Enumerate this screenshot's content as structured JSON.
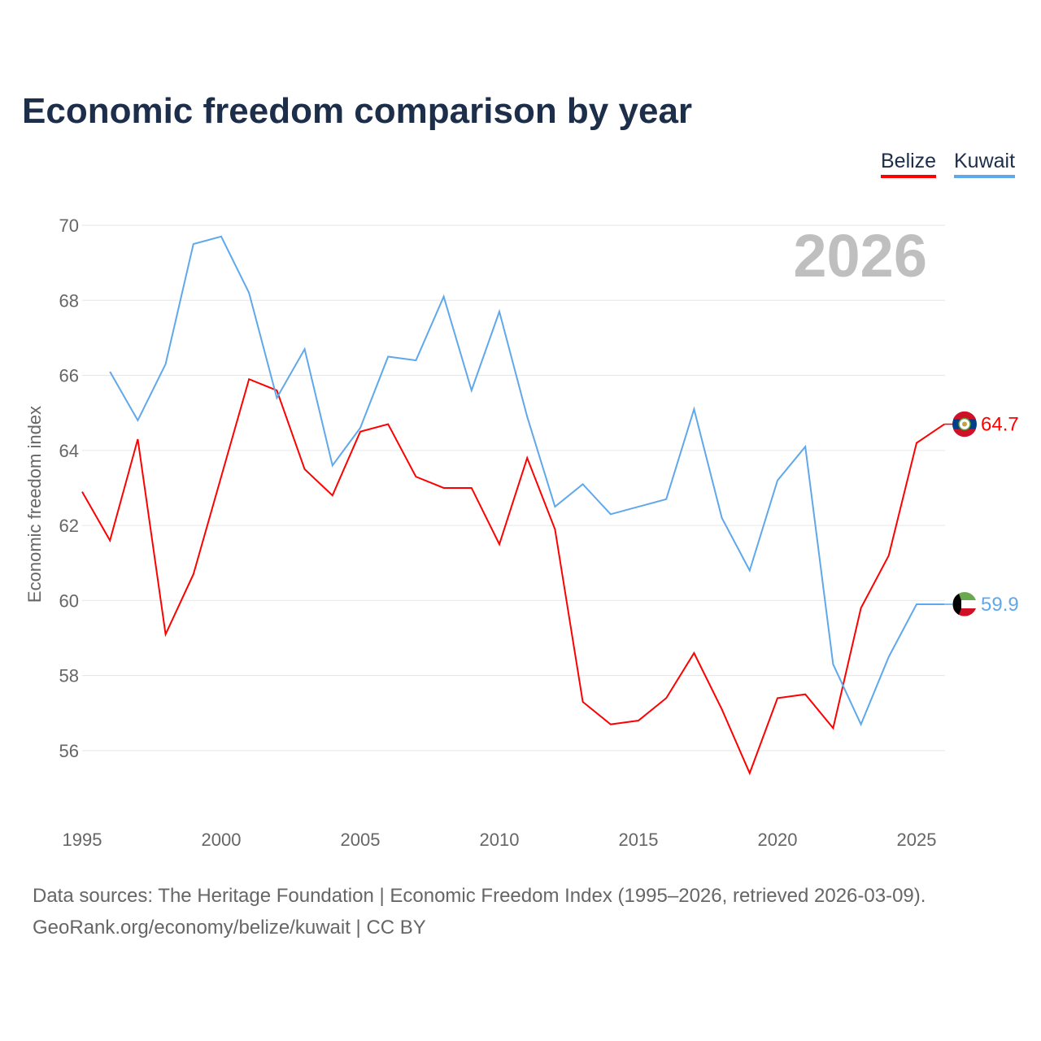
{
  "chart_data": {
    "type": "line",
    "title": "Economic freedom comparison by year",
    "ylabel": "Economic freedom index",
    "xlabel": "",
    "xlim": [
      1995,
      2026
    ],
    "ylim": [
      54.4,
      70
    ],
    "yticks": [
      56,
      58,
      60,
      62,
      64,
      66,
      68,
      70
    ],
    "xticks": [
      1995,
      2000,
      2005,
      2010,
      2015,
      2020,
      2025
    ],
    "year_label": "2026",
    "grid": true,
    "legend": "top-right",
    "series": [
      {
        "name": "Belize",
        "color": "#ff0000",
        "end_label": "64.7",
        "x": [
          1995,
          1996,
          1997,
          1998,
          1999,
          2000,
          2001,
          2002,
          2003,
          2004,
          2005,
          2006,
          2007,
          2008,
          2009,
          2010,
          2011,
          2012,
          2013,
          2014,
          2015,
          2016,
          2017,
          2018,
          2019,
          2020,
          2021,
          2022,
          2023,
          2024,
          2025,
          2026
        ],
        "values": [
          62.9,
          61.6,
          64.3,
          59.1,
          60.7,
          63.3,
          65.9,
          65.6,
          63.5,
          62.8,
          64.5,
          64.7,
          63.3,
          63.0,
          63.0,
          61.5,
          63.8,
          61.9,
          57.3,
          56.7,
          56.8,
          57.4,
          58.6,
          57.1,
          55.4,
          57.4,
          57.5,
          56.6,
          59.8,
          61.2,
          64.2,
          64.7
        ]
      },
      {
        "name": "Kuwait",
        "color": "#5fa8ec",
        "end_label": "59.9",
        "x": [
          1996,
          1997,
          1998,
          1999,
          2000,
          2001,
          2002,
          2003,
          2004,
          2005,
          2006,
          2007,
          2008,
          2009,
          2010,
          2011,
          2012,
          2013,
          2014,
          2015,
          2016,
          2017,
          2018,
          2019,
          2020,
          2021,
          2022,
          2023,
          2024,
          2025,
          2026
        ],
        "values": [
          66.1,
          64.8,
          66.3,
          69.5,
          69.7,
          68.2,
          65.4,
          66.7,
          63.6,
          64.6,
          66.5,
          66.4,
          68.1,
          65.6,
          67.7,
          64.9,
          62.5,
          63.1,
          62.3,
          62.5,
          62.7,
          65.1,
          62.2,
          60.8,
          63.2,
          64.1,
          58.3,
          56.7,
          58.5,
          59.9,
          59.9
        ]
      }
    ]
  },
  "source_line1": "Data sources: The Heritage Foundation | Economic Freedom Index (1995–2026, retrieved 2026-03-09).",
  "source_line2": "GeoRank.org/economy/belize/kuwait | CC BY"
}
